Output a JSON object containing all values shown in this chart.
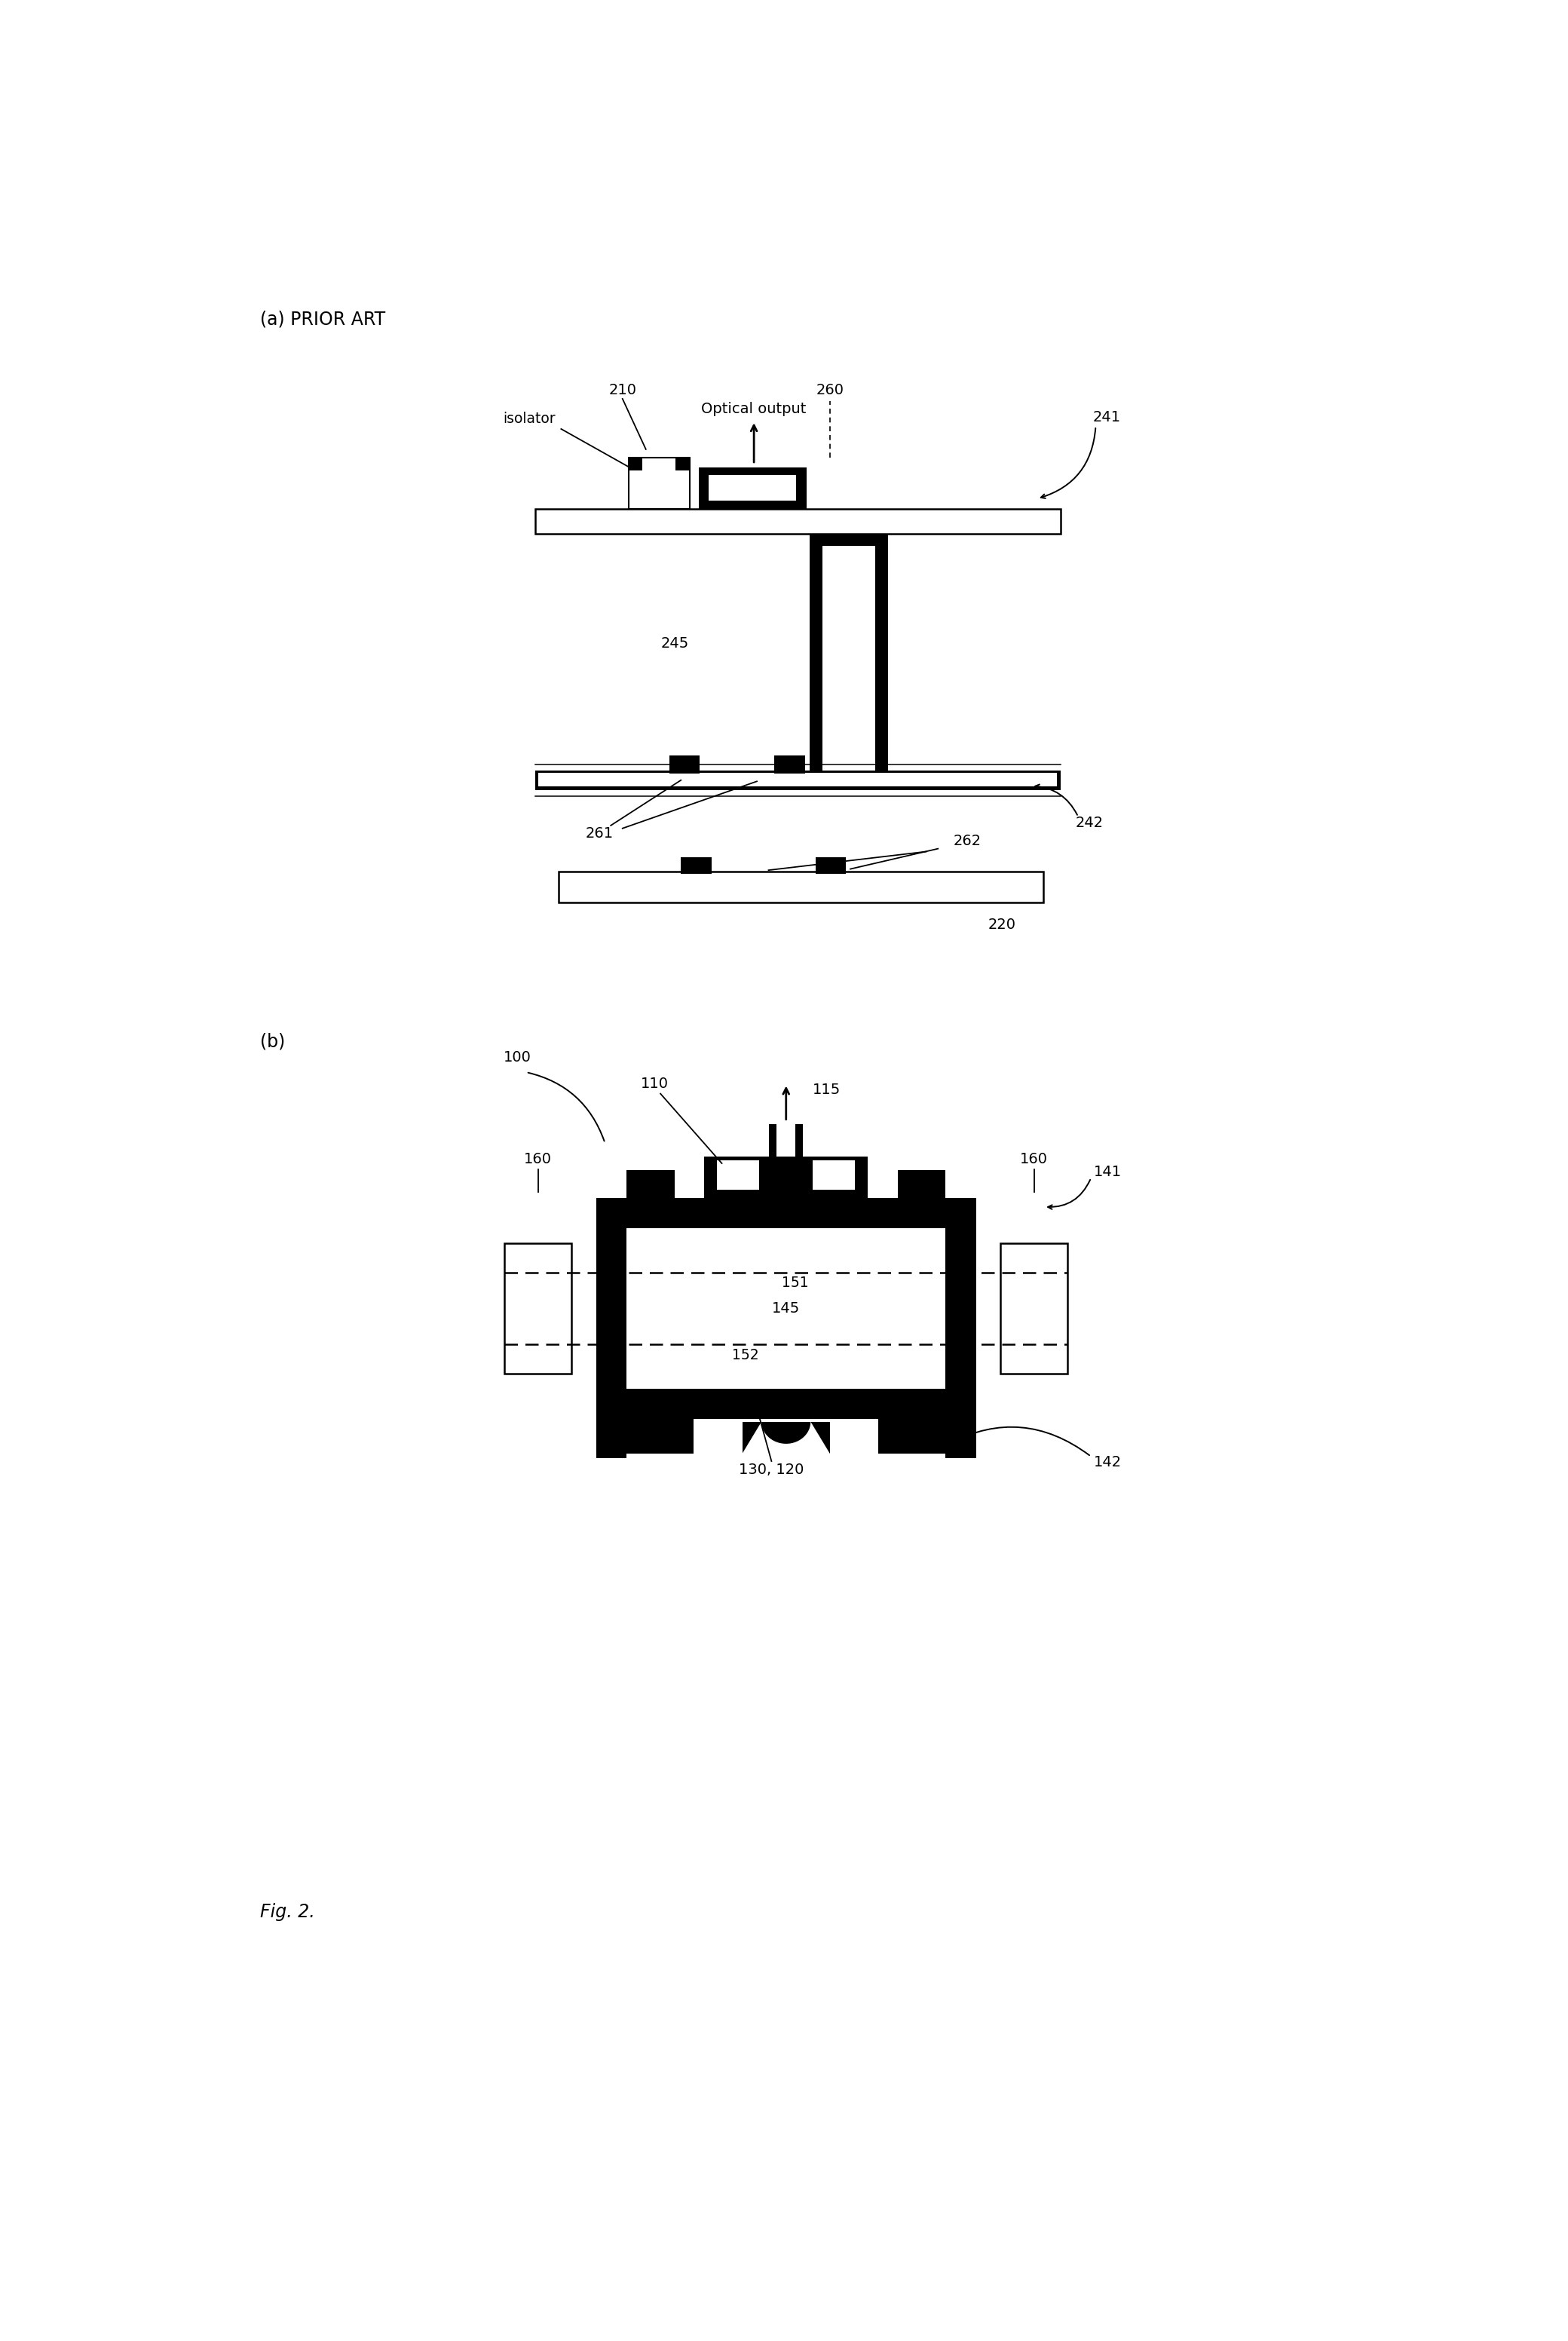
{
  "fig_width": 20.8,
  "fig_height": 31.05,
  "bg_color": "#ffffff",
  "black": "#000000",
  "label_a": "(a) PRIOR ART",
  "label_b": "(b)",
  "fig_label": "Fig. 2.",
  "lw_thin": 1.8,
  "lw_med": 2.5
}
